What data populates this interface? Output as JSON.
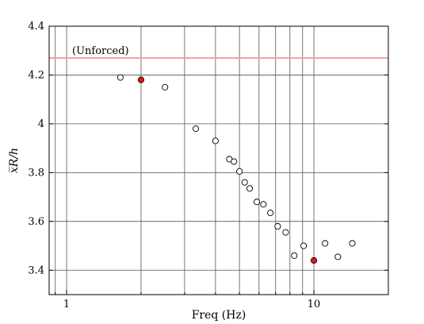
{
  "chart_data": {
    "type": "scatter",
    "title": "",
    "xlabel": "Freq (Hz)",
    "ylabel": "x_R / h",
    "ylabel_display": "x̅R/h",
    "xscale": "log",
    "xlim": [
      0.85,
      20
    ],
    "ylim": [
      3.3,
      4.4
    ],
    "x_ticks": [
      1,
      10
    ],
    "x_tick_labels": [
      "1",
      "10"
    ],
    "y_ticks": [
      3.4,
      3.6,
      3.8,
      4.0,
      4.2,
      4.4
    ],
    "y_tick_labels": [
      "3.4",
      "3.6",
      "3.8",
      "4",
      "4.2",
      "4.4"
    ],
    "grid": true,
    "reference_line": {
      "y": 4.27,
      "label": "(Unforced)",
      "color": "#f4a3a3"
    },
    "series": [
      {
        "marker": "open-circle",
        "color": "#000000",
        "x": [
          1.65,
          2.5,
          3.33,
          4.0,
          4.55,
          4.75,
          5.0,
          5.25,
          5.5,
          5.88,
          6.25,
          6.67,
          7.14,
          7.69,
          8.33,
          9.09,
          11.1,
          12.5,
          14.3
        ],
        "y": [
          4.19,
          4.15,
          3.98,
          3.93,
          3.855,
          3.845,
          3.805,
          3.76,
          3.735,
          3.68,
          3.67,
          3.635,
          3.58,
          3.555,
          3.46,
          3.5,
          3.51,
          3.455,
          3.51
        ]
      },
      {
        "marker": "filled-circle",
        "color": "#e8141c",
        "x": [
          2.0,
          10.0
        ],
        "y": [
          4.18,
          3.44
        ]
      }
    ]
  }
}
